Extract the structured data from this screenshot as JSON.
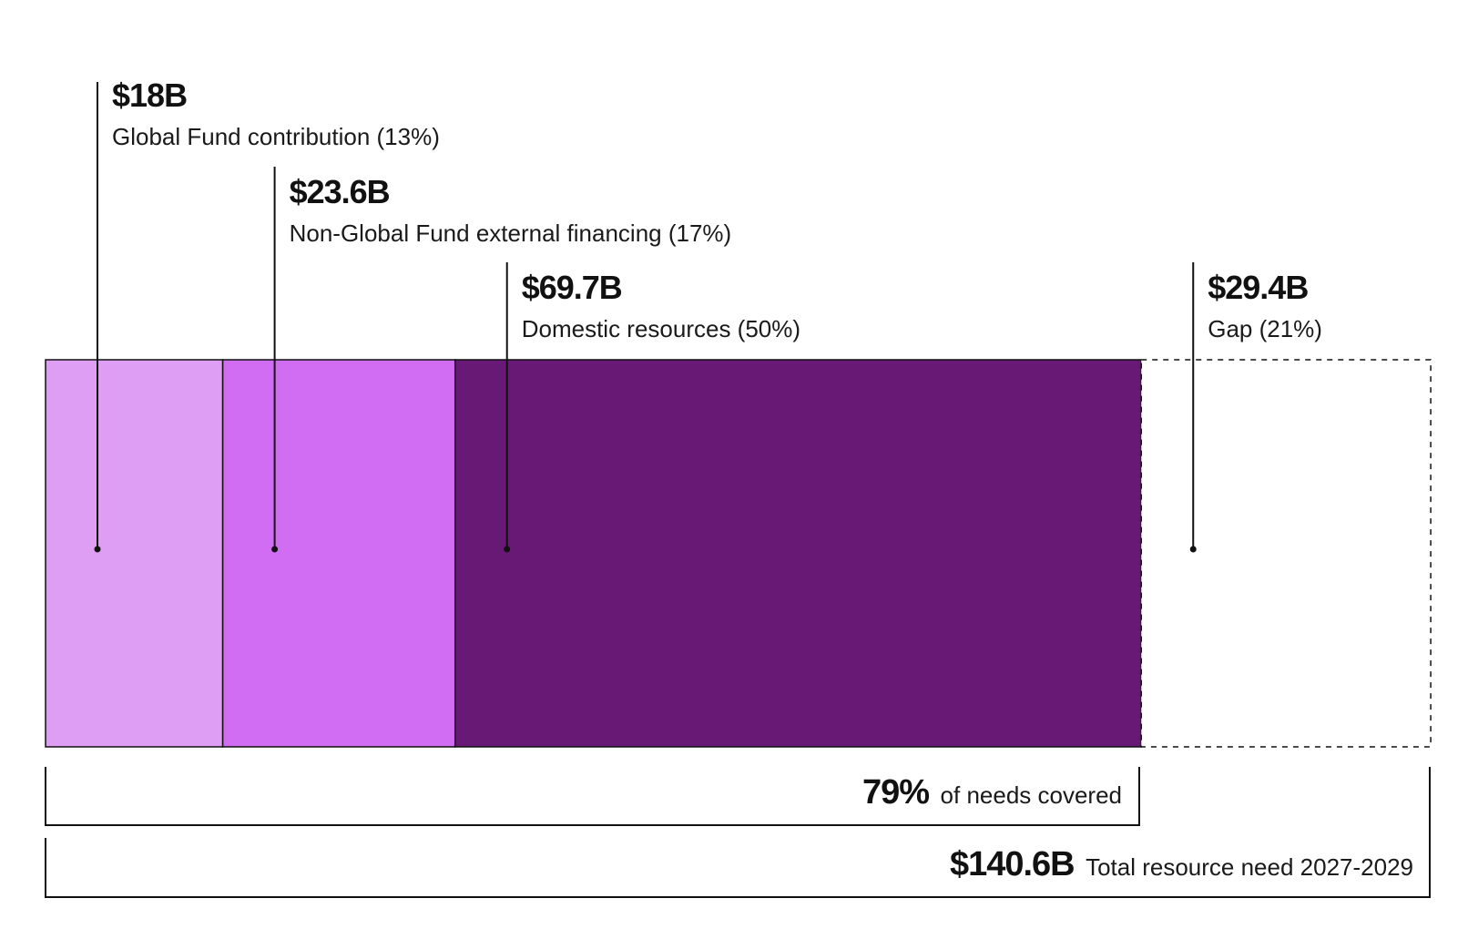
{
  "chart_data": {
    "type": "bar",
    "orientation": "horizontal-stacked",
    "unit": "USD billions",
    "total": 140.6,
    "segments": [
      {
        "name": "Global Fund contribution",
        "value": 18,
        "value_label": "$18B",
        "label": "Global Fund contribution (13%)",
        "color": "#de9ef3"
      },
      {
        "name": "Non-Global Fund external financing",
        "value": 23.6,
        "value_label": "$23.6B",
        "label": "Non-Global Fund external financing (17%)",
        "color": "#d16df2"
      },
      {
        "name": "Domestic resources",
        "value": 69.7,
        "value_label": "$69.7B",
        "label": "Domestic resources (50%)",
        "color": "#671975"
      },
      {
        "name": "Gap",
        "value": 29.4,
        "value_label": "$29.4B",
        "label": "Gap (21%)",
        "color": "#ffffff",
        "dashed": true
      }
    ],
    "coverage": {
      "value_label": "79%",
      "text": "of needs covered"
    },
    "total_need": {
      "value_label": "$140.6B",
      "text": "Total resource need 2027-2029"
    }
  }
}
